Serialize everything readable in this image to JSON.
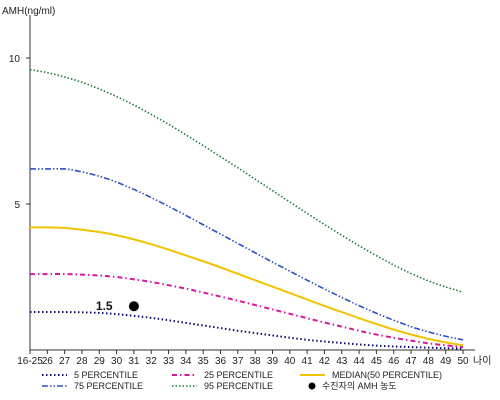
{
  "chart_data": {
    "type": "line",
    "ylabel": "AMH(ng/ml)",
    "xlabel": "나이",
    "x": [
      "16-25",
      "26",
      "27",
      "28",
      "29",
      "30",
      "31",
      "32",
      "33",
      "34",
      "35",
      "36",
      "37",
      "38",
      "39",
      "40",
      "41",
      "42",
      "43",
      "44",
      "45",
      "46",
      "47",
      "48",
      "49",
      "50"
    ],
    "yticks": [
      5,
      10
    ],
    "ylim": [
      0,
      11.2
    ],
    "series": [
      {
        "name": "5 PERCENTILE",
        "color": "#0b0b6b",
        "dash": "1.5,2.5",
        "width": 2,
        "values": [
          1.3,
          1.3,
          1.3,
          1.29,
          1.27,
          1.23,
          1.17,
          1.1,
          1.02,
          0.93,
          0.84,
          0.75,
          0.66,
          0.58,
          0.5,
          0.42,
          0.35,
          0.29,
          0.24,
          0.19,
          0.15,
          0.12,
          0.1,
          0.08,
          0.06,
          0.05
        ]
      },
      {
        "name": "25 PERCENTILE",
        "color": "#d6199c",
        "dash": "5,3,1.5,3",
        "width": 2,
        "values": [
          2.6,
          2.6,
          2.6,
          2.58,
          2.55,
          2.5,
          2.42,
          2.33,
          2.22,
          2.1,
          1.97,
          1.83,
          1.69,
          1.54,
          1.39,
          1.24,
          1.09,
          0.94,
          0.8,
          0.66,
          0.53,
          0.42,
          0.32,
          0.23,
          0.16,
          0.1
        ]
      },
      {
        "name": "MEDIAN(50 PERCENTILE)",
        "color": "#f2c200",
        "dash": "",
        "width": 2,
        "values": [
          4.2,
          4.2,
          4.18,
          4.12,
          4.04,
          3.93,
          3.79,
          3.62,
          3.44,
          3.24,
          3.04,
          2.83,
          2.61,
          2.39,
          2.17,
          1.95,
          1.73,
          1.51,
          1.3,
          1.09,
          0.89,
          0.7,
          0.53,
          0.38,
          0.26,
          0.16
        ]
      },
      {
        "name": "75 PERCENTILE",
        "color": "#2e4fc4",
        "dash": "6,2,1.5,2,1.5,2",
        "width": 1.6,
        "values": [
          6.2,
          6.2,
          6.2,
          6.1,
          5.95,
          5.75,
          5.5,
          5.22,
          4.92,
          4.61,
          4.29,
          3.97,
          3.65,
          3.33,
          3.01,
          2.7,
          2.39,
          2.09,
          1.8,
          1.52,
          1.26,
          1.02,
          0.8,
          0.62,
          0.47,
          0.35
        ]
      },
      {
        "name": "95 PERCENTILE",
        "color": "#1f7a3a",
        "dash": "1.5,2",
        "width": 1.6,
        "values": [
          9.6,
          9.5,
          9.35,
          9.17,
          8.94,
          8.68,
          8.39,
          8.07,
          7.73,
          7.37,
          7.0,
          6.62,
          6.24,
          5.85,
          5.46,
          5.07,
          4.68,
          4.3,
          3.93,
          3.57,
          3.23,
          2.91,
          2.62,
          2.37,
          2.16,
          1.98
        ]
      }
    ],
    "points": [
      {
        "name": "수진자의 AMH 농도",
        "x": "31",
        "y": 1.5,
        "label": "1.5",
        "color": "#000000"
      }
    ],
    "legend_placement": "bottom",
    "grid": false
  }
}
